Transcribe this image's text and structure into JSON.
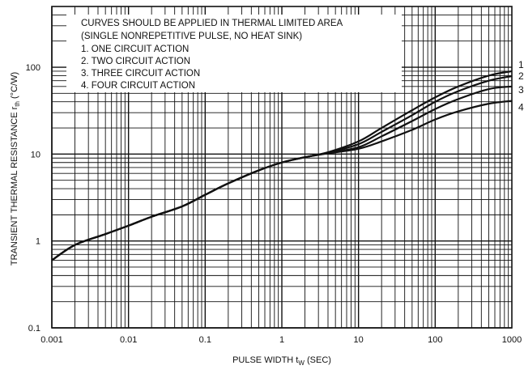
{
  "chart_data": {
    "type": "line",
    "title": "",
    "xlabel": "PULSE WIDTH t",
    "xlabel_sub": "W",
    "xlabel_unit": " (SEC)",
    "ylabel": "TRANSIENT THERMAL RESISTANCE r",
    "ylabel_sub": "th",
    "ylabel_unit": " (°C/W)",
    "x_scale": "log",
    "y_scale": "log",
    "xlim": [
      0.001,
      1000
    ],
    "ylim": [
      0.1,
      500
    ],
    "grid": true,
    "x_ticks": [
      "0.001",
      "0.01",
      "0.1",
      "1",
      "10",
      "100",
      "1000"
    ],
    "y_ticks": [
      "0.1",
      "1",
      "10",
      "100"
    ],
    "annotation_lines": [
      "CURVES SHOULD BE APPLIED IN THERMAL LIMITED AREA",
      "(SINGLE NONREPETITIVE PULSE, NO HEAT SINK)",
      "1. ONE CIRCUIT ACTION",
      "2. TWO CIRCUIT ACTION",
      "3. THREE CIRCUIT ACTION",
      "4. FOUR CIRCUIT ACTION"
    ],
    "series": [
      {
        "name": "1",
        "x": [
          0.001,
          0.002,
          0.005,
          0.01,
          0.02,
          0.05,
          0.1,
          0.2,
          0.5,
          1,
          2,
          4,
          10,
          20,
          50,
          100,
          200,
          500,
          1000
        ],
        "y": [
          0.6,
          0.9,
          1.2,
          1.5,
          1.9,
          2.5,
          3.4,
          4.6,
          6.5,
          8,
          9.2,
          10.5,
          14,
          20,
          32,
          45,
          60,
          80,
          90
        ]
      },
      {
        "name": "2",
        "x": [
          0.001,
          0.002,
          0.005,
          0.01,
          0.02,
          0.05,
          0.1,
          0.2,
          0.5,
          1,
          2,
          4,
          10,
          20,
          50,
          100,
          200,
          500,
          1000
        ],
        "y": [
          0.6,
          0.9,
          1.2,
          1.5,
          1.9,
          2.5,
          3.4,
          4.6,
          6.5,
          8,
          9.2,
          10.4,
          13,
          18,
          28,
          40,
          53,
          70,
          79
        ]
      },
      {
        "name": "3",
        "x": [
          0.001,
          0.002,
          0.005,
          0.01,
          0.02,
          0.05,
          0.1,
          0.2,
          0.5,
          1,
          2,
          4,
          10,
          20,
          50,
          100,
          200,
          500,
          1000
        ],
        "y": [
          0.6,
          0.9,
          1.2,
          1.5,
          1.9,
          2.5,
          3.4,
          4.6,
          6.5,
          8,
          9.2,
          10.3,
          12,
          16,
          24,
          33,
          43,
          56,
          60
        ]
      },
      {
        "name": "4",
        "x": [
          0.001,
          0.002,
          0.005,
          0.01,
          0.02,
          0.05,
          0.1,
          0.2,
          0.5,
          1,
          2,
          4,
          10,
          20,
          50,
          100,
          200,
          500,
          1000
        ],
        "y": [
          0.6,
          0.9,
          1.2,
          1.5,
          1.9,
          2.5,
          3.4,
          4.6,
          6.5,
          8,
          9.2,
          10.2,
          11.5,
          14,
          19,
          25,
          31,
          38,
          41
        ]
      }
    ]
  }
}
